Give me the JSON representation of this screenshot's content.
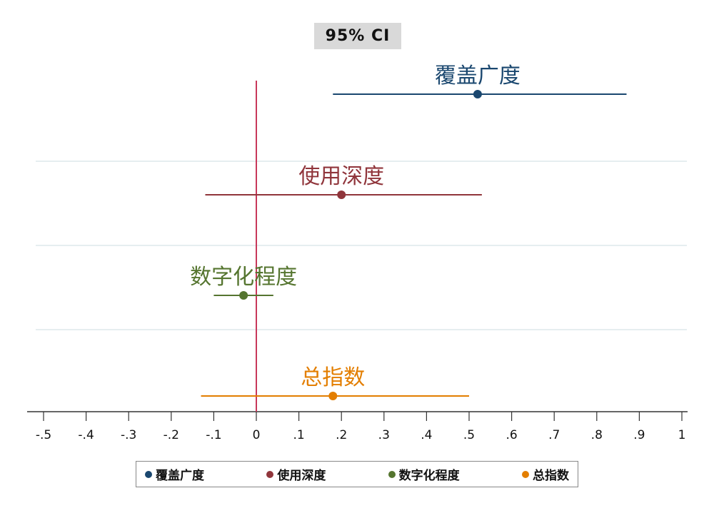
{
  "chart_data": {
    "type": "scatter",
    "title": "95% CI",
    "xlabel": "",
    "ylabel": "",
    "xlim": [
      -0.5,
      1
    ],
    "x_ticks": [
      -0.5,
      -0.4,
      -0.3,
      -0.2,
      -0.1,
      0,
      0.1,
      0.2,
      0.3,
      0.4,
      0.5,
      0.6,
      0.7,
      0.8,
      0.9,
      1
    ],
    "x_tick_labels": [
      "-.5",
      "-.4",
      "-.3",
      "-.2",
      "-.1",
      "0",
      ".1",
      ".2",
      ".3",
      ".4",
      ".5",
      ".6",
      ".7",
      ".8",
      ".9",
      "1"
    ],
    "reference_line": 0,
    "grid": true,
    "legend_position": "bottom",
    "series": [
      {
        "name": "覆盖广度",
        "color": "#1a476f",
        "estimate": 0.52,
        "ci": [
          0.18,
          0.87
        ]
      },
      {
        "name": "使用深度",
        "color": "#90353b",
        "estimate": 0.2,
        "ci": [
          -0.12,
          0.53
        ]
      },
      {
        "name": "数字化程度",
        "color": "#55752f",
        "estimate": -0.03,
        "ci": [
          -0.1,
          0.04
        ]
      },
      {
        "name": "总指数",
        "color": "#e37e00",
        "estimate": 0.18,
        "ci": [
          -0.13,
          0.5
        ]
      }
    ]
  }
}
